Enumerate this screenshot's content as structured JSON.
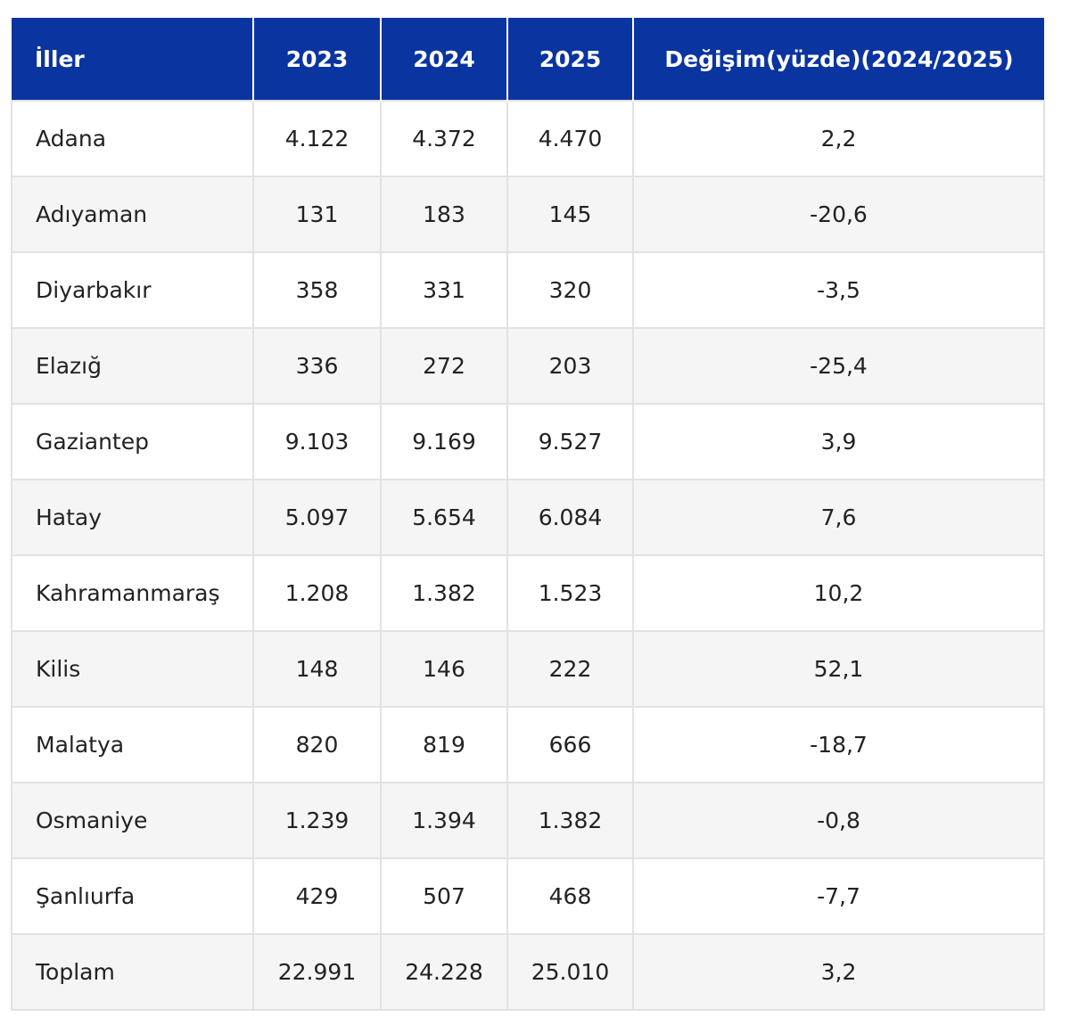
{
  "table": {
    "header": [
      "İller",
      "2023",
      "2024",
      "2025",
      "Değişim(yüzde)(2024/2025)"
    ],
    "rows": [
      [
        "Adana",
        "4.122",
        "4.372",
        "4.470",
        "2,2"
      ],
      [
        "Adıyaman",
        "131",
        "183",
        "145",
        "-20,6"
      ],
      [
        "Diyarbakır",
        "358",
        "331",
        "320",
        "-3,5"
      ],
      [
        "Elazığ",
        "336",
        "272",
        "203",
        "-25,4"
      ],
      [
        "Gaziantep",
        "9.103",
        "9.169",
        "9.527",
        "3,9"
      ],
      [
        "Hatay",
        "5.097",
        "5.654",
        "6.084",
        "7,6"
      ],
      [
        "Kahramanmaraş",
        "1.208",
        "1.382",
        "1.523",
        "10,2"
      ],
      [
        "Kilis",
        "148",
        "146",
        "222",
        "52,1"
      ],
      [
        "Malatya",
        "820",
        "819",
        "666",
        "-18,7"
      ],
      [
        "Osmaniye",
        "1.239",
        "1.394",
        "1.382",
        "-0,8"
      ],
      [
        "Şanlıurfa",
        "429",
        "507",
        "468",
        "-7,7"
      ],
      [
        "Toplam",
        "22.991",
        "24.228",
        "25.010",
        "3,2"
      ]
    ]
  }
}
